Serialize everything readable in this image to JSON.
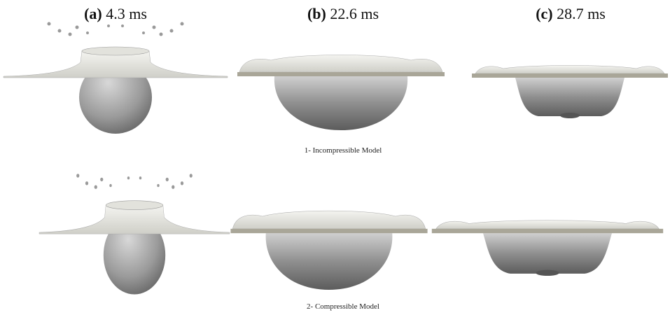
{
  "panels": [
    {
      "label": "(a)",
      "time": "4.3 ms"
    },
    {
      "label": "(b)",
      "time": "22.6 ms"
    },
    {
      "label": "(c)",
      "time": "28.7 ms"
    }
  ],
  "rows": [
    {
      "caption": "1- Incompressible Model"
    },
    {
      "caption": "2- Compressible Model"
    }
  ]
}
